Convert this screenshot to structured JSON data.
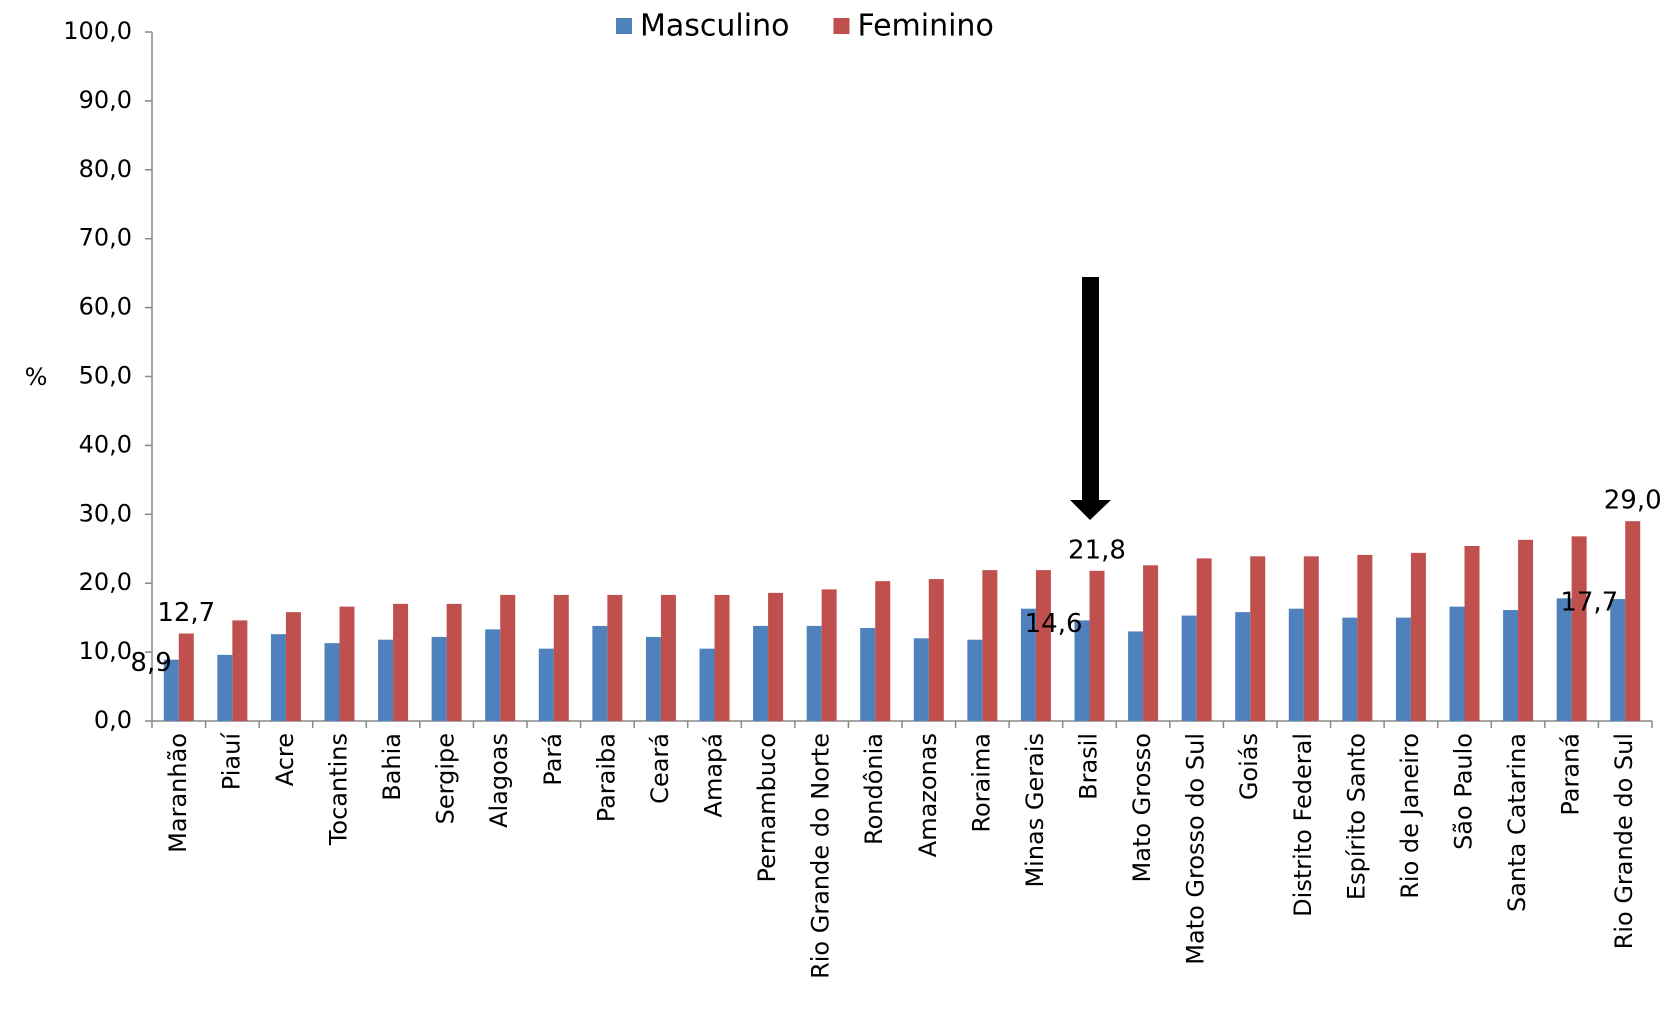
{
  "chart_data": {
    "type": "bar",
    "y_label": "%",
    "categories": [
      "Maranhão",
      "Piauí",
      "Acre",
      "Tocantins",
      "Bahia",
      "Sergipe",
      "Alagoas",
      "Pará",
      "Paraiba",
      "Ceará",
      "Amapá",
      "Pernambuco",
      "Rio Grande do Norte",
      "Rondônia",
      "Amazonas",
      "Roraima",
      "Minas Gerais",
      "Brasil",
      "Mato Grosso",
      "Mato Grosso do Sul",
      "Goiás",
      "Distrito Federal",
      "Espírito Santo",
      "Rio de Janeiro",
      "São Paulo",
      "Santa Catarina",
      "Paraná",
      "Rio Grande do Sul"
    ],
    "series": [
      {
        "name": "Masculino",
        "color": "#4f81bd",
        "values": [
          8.9,
          9.6,
          12.6,
          11.3,
          11.8,
          12.2,
          13.3,
          10.5,
          13.8,
          12.2,
          10.5,
          13.8,
          13.8,
          13.5,
          12.0,
          11.8,
          16.3,
          14.6,
          13.0,
          15.3,
          15.8,
          16.3,
          15.0,
          15.0,
          16.6,
          16.1,
          17.8,
          17.7
        ],
        "value_labels": [
          "8,9",
          null,
          null,
          null,
          null,
          null,
          null,
          null,
          null,
          null,
          null,
          null,
          null,
          null,
          null,
          null,
          null,
          "14,6",
          null,
          null,
          null,
          null,
          null,
          null,
          null,
          null,
          null,
          "17,7"
        ]
      },
      {
        "name": "Feminino",
        "color": "#c0504d",
        "values": [
          12.7,
          14.6,
          15.8,
          16.6,
          17.0,
          17.0,
          18.3,
          18.3,
          18.3,
          18.3,
          18.3,
          18.6,
          19.1,
          20.3,
          20.6,
          21.9,
          21.9,
          21.8,
          22.6,
          23.6,
          23.9,
          23.9,
          24.1,
          24.4,
          25.4,
          26.3,
          26.8,
          29.0
        ],
        "value_labels": [
          "12,7",
          null,
          null,
          null,
          null,
          null,
          null,
          null,
          null,
          null,
          null,
          null,
          null,
          null,
          null,
          null,
          null,
          "21,8",
          null,
          null,
          null,
          null,
          null,
          null,
          null,
          null,
          null,
          "29,0"
        ]
      }
    ],
    "ylim": [
      0,
      100
    ],
    "yticks": [
      {
        "value": 0,
        "label": "0,0"
      },
      {
        "value": 10,
        "label": "10,0"
      },
      {
        "value": 20,
        "label": "20,0"
      },
      {
        "value": 30,
        "label": "30,0"
      },
      {
        "value": 40,
        "label": "40,0"
      },
      {
        "value": 50,
        "label": "50,0"
      },
      {
        "value": 60,
        "label": "60,0"
      },
      {
        "value": 70,
        "label": "70,0"
      },
      {
        "value": 80,
        "label": "80,0"
      },
      {
        "value": 90,
        "label": "90,0"
      },
      {
        "value": 100,
        "label": "100,0"
      }
    ],
    "legend": "top"
  }
}
